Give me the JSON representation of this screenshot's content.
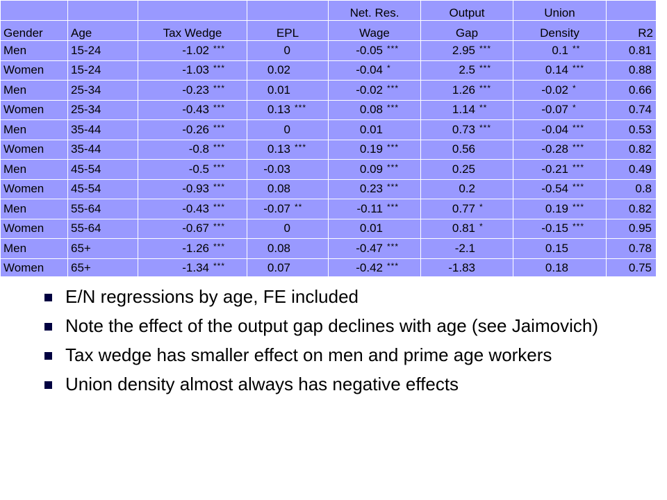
{
  "table": {
    "header_top": {
      "gender": "",
      "age": "",
      "tax": "",
      "epl": "",
      "wage": "Net. Res.",
      "gap": "Output",
      "union": "Union",
      "r2": ""
    },
    "header_bottom": {
      "gender": "Gender",
      "age": "Age",
      "tax": "Tax Wedge",
      "epl": "EPL",
      "wage": "Wage",
      "gap": "Gap",
      "union": "Density",
      "r2": "R2"
    },
    "rows": [
      {
        "gender": "Men",
        "age": "15-24",
        "tax": "-1.02",
        "tax_sig": "***",
        "epl": "0",
        "epl_sig": "",
        "wage": "-0.05",
        "wage_sig": "***",
        "gap": "2.95",
        "gap_sig": "***",
        "union": "0.1",
        "union_sig": "**",
        "r2": "0.81"
      },
      {
        "gender": "Women",
        "age": "15-24",
        "tax": "-1.03",
        "tax_sig": "***",
        "epl": "0.02",
        "epl_sig": "",
        "wage": "-0.04",
        "wage_sig": "*",
        "gap": "2.5",
        "gap_sig": "***",
        "union": "0.14",
        "union_sig": "***",
        "r2": "0.88"
      },
      {
        "gender": "Men",
        "age": "25-34",
        "tax": "-0.23",
        "tax_sig": "***",
        "epl": "0.01",
        "epl_sig": "",
        "wage": "-0.02",
        "wage_sig": "***",
        "gap": "1.26",
        "gap_sig": "***",
        "union": "-0.02",
        "union_sig": "*",
        "r2": "0.66"
      },
      {
        "gender": "Women",
        "age": "25-34",
        "tax": "-0.43",
        "tax_sig": "***",
        "epl": "0.13",
        "epl_sig": "***",
        "wage": "0.08",
        "wage_sig": "***",
        "gap": "1.14",
        "gap_sig": "**",
        "union": "-0.07",
        "union_sig": "*",
        "r2": "0.74"
      },
      {
        "gender": "Men",
        "age": "35-44",
        "tax": "-0.26",
        "tax_sig": "***",
        "epl": "0",
        "epl_sig": "",
        "wage": "0.01",
        "wage_sig": "",
        "gap": "0.73",
        "gap_sig": "***",
        "union": "-0.04",
        "union_sig": "***",
        "r2": "0.53"
      },
      {
        "gender": "Women",
        "age": "35-44",
        "tax": "-0.8",
        "tax_sig": "***",
        "epl": "0.13",
        "epl_sig": "***",
        "wage": "0.19",
        "wage_sig": "***",
        "gap": "0.56",
        "gap_sig": "",
        "union": "-0.28",
        "union_sig": "***",
        "r2": "0.82"
      },
      {
        "gender": "Men",
        "age": "45-54",
        "tax": "-0.5",
        "tax_sig": "***",
        "epl": "-0.03",
        "epl_sig": "",
        "wage": "0.09",
        "wage_sig": "***",
        "gap": "0.25",
        "gap_sig": "",
        "union": "-0.21",
        "union_sig": "***",
        "r2": "0.49"
      },
      {
        "gender": "Women",
        "age": "45-54",
        "tax": "-0.93",
        "tax_sig": "***",
        "epl": "0.08",
        "epl_sig": "",
        "wage": "0.23",
        "wage_sig": "***",
        "gap": "0.2",
        "gap_sig": "",
        "union": "-0.54",
        "union_sig": "***",
        "r2": "0.8"
      },
      {
        "gender": "Men",
        "age": "55-64",
        "tax": "-0.43",
        "tax_sig": "***",
        "epl": "-0.07",
        "epl_sig": "**",
        "wage": "-0.11",
        "wage_sig": "***",
        "gap": "0.77",
        "gap_sig": "*",
        "union": "0.19",
        "union_sig": "***",
        "r2": "0.82"
      },
      {
        "gender": "Women",
        "age": "55-64",
        "tax": "-0.67",
        "tax_sig": "***",
        "epl": "0",
        "epl_sig": "",
        "wage": "0.01",
        "wage_sig": "",
        "gap": "0.81",
        "gap_sig": "*",
        "union": "-0.15",
        "union_sig": "***",
        "r2": "0.95"
      },
      {
        "gender": "Men",
        "age": "65+",
        "tax": "-1.26",
        "tax_sig": "***",
        "epl": "0.08",
        "epl_sig": "",
        "wage": "-0.47",
        "wage_sig": "***",
        "gap": "-2.1",
        "gap_sig": "",
        "union": "0.15",
        "union_sig": "",
        "r2": "0.78"
      },
      {
        "gender": "Women",
        "age": "65+",
        "tax": "-1.34",
        "tax_sig": "***",
        "epl": "0.07",
        "epl_sig": "",
        "wage": "-0.42",
        "wage_sig": "***",
        "gap": "-1.83",
        "gap_sig": "",
        "union": "0.18",
        "union_sig": "",
        "r2": "0.75"
      }
    ]
  },
  "bullets": [
    "E/N regressions by age, FE included",
    "Note the effect of the output gap declines with age (see Jaimovich)",
    "Tax wedge has smaller effect on men and prime age workers",
    "Union density almost always has negative effects"
  ],
  "colors": {
    "table_background": "#9999ff",
    "grid_lines": "#ffffff",
    "bullet": "#000040"
  },
  "icons": {
    "bullet": "bullet-square-icon"
  }
}
